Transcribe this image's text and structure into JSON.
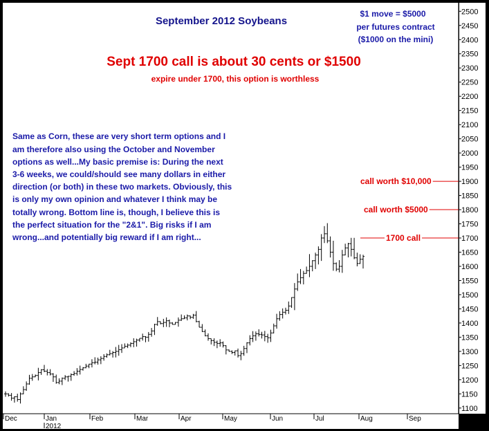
{
  "chart_data": {
    "type": "ohlc-bar",
    "title": "September 2012 Soybeans",
    "ylim": [
      1080,
      2530
    ],
    "y_ticks": [
      1100,
      1150,
      1200,
      1250,
      1300,
      1350,
      1400,
      1450,
      1500,
      1550,
      1600,
      1650,
      1700,
      1750,
      1800,
      1850,
      1900,
      1950,
      2000,
      2050,
      2100,
      2150,
      2200,
      2250,
      2300,
      2350,
      2400,
      2450,
      2500
    ],
    "x_ticks": [
      "Dec",
      "Jan",
      "Feb",
      "Mar",
      "Apr",
      "May",
      "Jun",
      "Jul",
      "Aug",
      "Sep"
    ],
    "year_label": "2012",
    "closes": [
      1150,
      1145,
      1135,
      1140,
      1130,
      1150,
      1165,
      1185,
      1205,
      1210,
      1215,
      1225,
      1235,
      1230,
      1225,
      1220,
      1210,
      1190,
      1195,
      1205,
      1210,
      1212,
      1218,
      1222,
      1230,
      1236,
      1242,
      1248,
      1255,
      1260,
      1262,
      1270,
      1275,
      1282,
      1288,
      1292,
      1296,
      1300,
      1306,
      1312,
      1318,
      1322,
      1328,
      1334,
      1340,
      1346,
      1352,
      1350,
      1360,
      1372,
      1395,
      1405,
      1398,
      1402,
      1408,
      1400,
      1395,
      1402,
      1410,
      1415,
      1418,
      1425,
      1420,
      1428,
      1405,
      1385,
      1370,
      1355,
      1345,
      1338,
      1332,
      1328,
      1330,
      1320,
      1305,
      1300,
      1296,
      1302,
      1285,
      1292,
      1310,
      1330,
      1345,
      1355,
      1362,
      1360,
      1358,
      1352,
      1348,
      1365,
      1390,
      1415,
      1430,
      1438,
      1445,
      1460,
      1490,
      1520,
      1545,
      1560,
      1575,
      1585,
      1600,
      1620,
      1640,
      1660,
      1700,
      1715,
      1690,
      1650,
      1610,
      1590,
      1600,
      1640,
      1665,
      1680,
      1660,
      1630,
      1610,
      1625,
      1635
    ]
  },
  "annotations": {
    "contract_note": [
      "$1 move = $5000",
      "per futures contract",
      "($1000 on the mini)"
    ],
    "headline": "Sept 1700 call is about 30 cents or $1500",
    "subhead": "expire under 1700, this option is worthless",
    "commentary": [
      "Same as Corn, these are very short term options and I",
      "am therefore also using the October and November",
      "options as well...My basic premise is: During the next",
      "3-6 weeks, we could/should see many dollars in either",
      "direction (or both) in these two markets. Obviously, this",
      "is only my own opinion and whatever I think may be",
      "totally wrong. Bottom line is, though, I believe this is",
      "the perfect situation for the \"2&1\". Big risks if I am",
      "wrong...and potentially big reward if I am right..."
    ],
    "level_labels": [
      {
        "text": "call worth $10,000",
        "value": 1900
      },
      {
        "text": "call worth $5000",
        "value": 1800
      },
      {
        "text": "1700 call",
        "value": 1700
      }
    ]
  },
  "colors": {
    "background": "#ffffff",
    "title": "#14148c",
    "note": "#1a1aa8",
    "headline": "#e00000",
    "bars": "#000000",
    "axis": "#000000",
    "frame": "#000000"
  }
}
